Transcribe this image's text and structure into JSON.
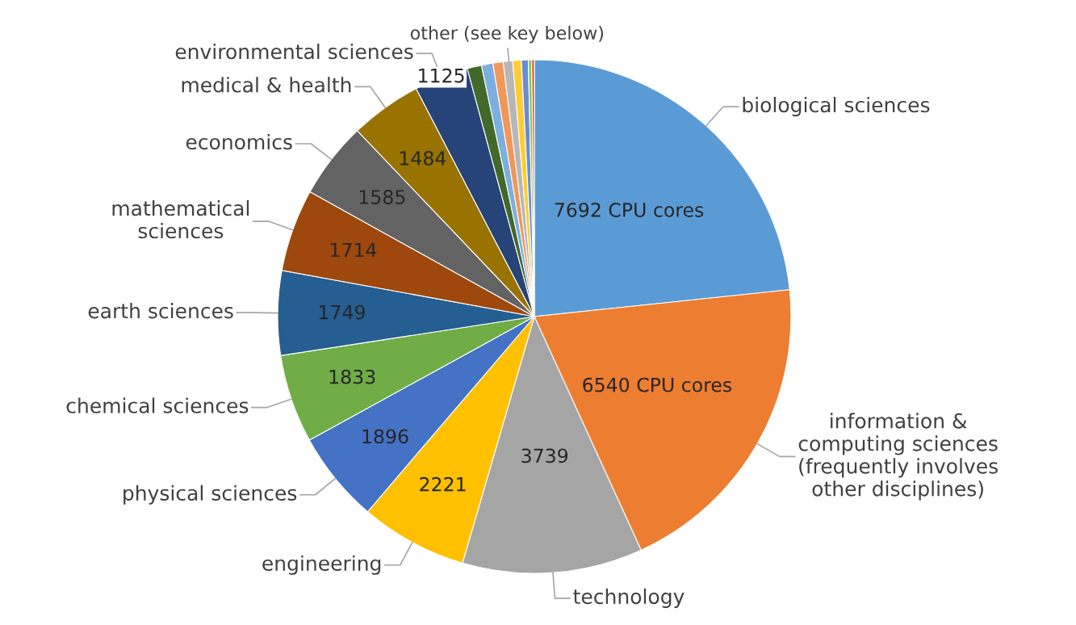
{
  "chart_data": {
    "type": "pie",
    "categories": [
      "biological sciences",
      "information &\ncomputing sciences\n(frequently involves\nother disciplines)",
      "technology",
      "engineering",
      "physical sciences",
      "chemical sciences",
      "earth sciences",
      "mathematical\nsciences",
      "economics",
      "medical & health",
      "environmental sciences",
      null,
      null,
      null,
      null,
      null,
      null,
      null,
      null
    ],
    "values": [
      7692,
      6540,
      3739,
      2221,
      1896,
      1833,
      1749,
      1714,
      1585,
      1484,
      1125,
      296,
      237,
      213,
      196,
      178,
      142,
      71,
      53
    ],
    "value_labels": [
      "7692 CPU cores",
      "6540 CPU cores",
      "3739",
      "2221",
      "1896",
      "1833",
      "1749",
      "1714",
      "1585",
      "1484",
      "1125",
      null,
      null,
      null,
      null,
      null,
      null,
      null,
      null
    ],
    "colors": [
      "#5b9bd5",
      "#ed7d31",
      "#a5a5a5",
      "#ffc000",
      "#4472c4",
      "#70ad47",
      "#255e91",
      "#9e480e",
      "#636363",
      "#997300",
      "#264478",
      "#43682b",
      "#7cafdd",
      "#f1975a",
      "#b7b7b7",
      "#ffcd33",
      "#698ed0",
      "#8cc168",
      "#c55a11"
    ],
    "annotations": [
      "other (see key below)"
    ],
    "legend": false
  }
}
